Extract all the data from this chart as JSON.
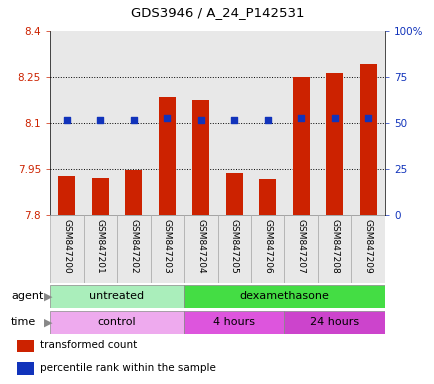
{
  "title": "GDS3946 / A_24_P142531",
  "samples": [
    "GSM847200",
    "GSM847201",
    "GSM847202",
    "GSM847203",
    "GSM847204",
    "GSM847205",
    "GSM847206",
    "GSM847207",
    "GSM847208",
    "GSM847209"
  ],
  "bar_values": [
    7.928,
    7.923,
    7.947,
    8.185,
    8.175,
    7.937,
    7.918,
    8.252,
    8.262,
    8.292
  ],
  "bar_base": 7.8,
  "percentile_values": [
    52,
    52,
    52,
    53,
    52,
    52,
    52,
    53,
    53,
    53
  ],
  "ylim_left": [
    7.8,
    8.4
  ],
  "ylim_right": [
    0,
    100
  ],
  "yticks_left": [
    7.8,
    7.95,
    8.1,
    8.25,
    8.4
  ],
  "yticks_right": [
    0,
    25,
    50,
    75,
    100
  ],
  "ytick_labels_right": [
    "0",
    "25",
    "50",
    "75",
    "100%"
  ],
  "hlines": [
    7.95,
    8.1,
    8.25
  ],
  "bar_color": "#cc2200",
  "dot_color": "#1133bb",
  "bar_width": 0.5,
  "agent_groups": [
    {
      "label": "untreated",
      "start": 0,
      "end": 4,
      "color": "#aaeebb"
    },
    {
      "label": "dexamethasone",
      "start": 4,
      "end": 10,
      "color": "#44dd44"
    }
  ],
  "time_groups": [
    {
      "label": "control",
      "start": 0,
      "end": 4,
      "color": "#eeaaee"
    },
    {
      "label": "4 hours",
      "start": 4,
      "end": 7,
      "color": "#dd55dd"
    },
    {
      "label": "24 hours",
      "start": 7,
      "end": 10,
      "color": "#cc44cc"
    }
  ],
  "legend_items": [
    {
      "label": "transformed count",
      "color": "#cc2200"
    },
    {
      "label": "percentile rank within the sample",
      "color": "#1133bb"
    }
  ],
  "left_tick_color": "#cc2200",
  "right_tick_color": "#1133bb",
  "bg_color": "#d8d8d8",
  "plot_bg": "#ffffff",
  "col_bg": "#e8e8e8"
}
